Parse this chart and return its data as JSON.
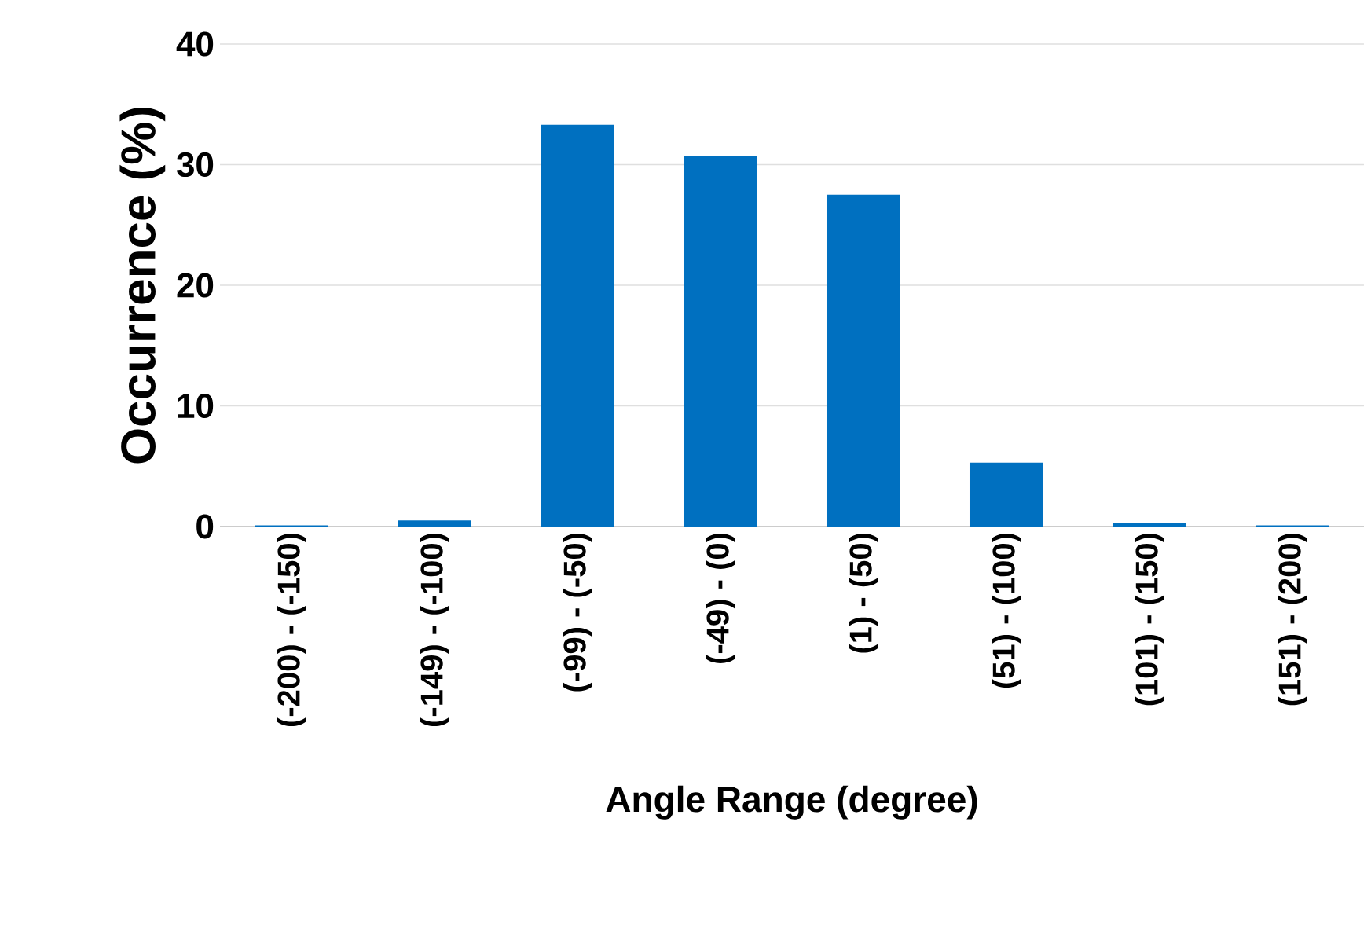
{
  "chart_data": {
    "type": "bar",
    "xlabel": "Angle Range (degree)",
    "ylabel": "Occurrence (%)",
    "categories": [
      "(-200) - (-150)",
      "(-149) - (-100)",
      "(-99) - (-50)",
      "(-49) - (0)",
      "(1) - (50)",
      "(51) - (100)",
      "(101) - (150)",
      "(151) - (200)"
    ],
    "values": [
      0.1,
      0.5,
      33.3,
      30.7,
      27.5,
      5.3,
      0.3,
      0.1
    ],
    "color": "#0070c0",
    "ylim": [
      0,
      40
    ],
    "yticks": [
      0,
      10,
      20,
      30,
      40
    ],
    "grid": "y"
  }
}
